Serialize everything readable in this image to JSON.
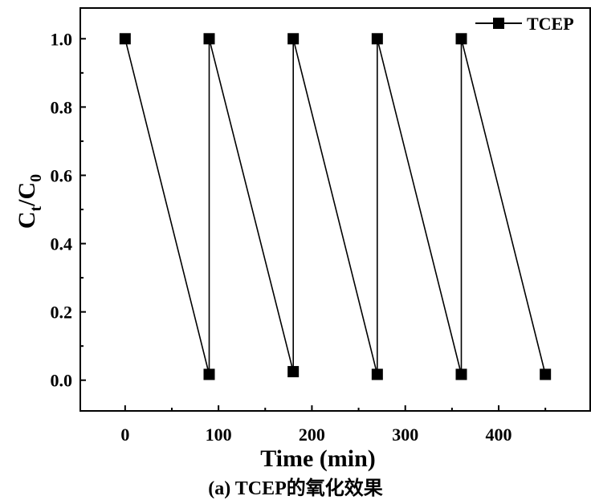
{
  "chart_data": {
    "type": "line",
    "series": [
      {
        "name": "TCEP",
        "points": [
          [
            0,
            1.0
          ],
          [
            90,
            0.017
          ],
          [
            90,
            1.0
          ],
          [
            180,
            0.025
          ],
          [
            180,
            1.0
          ],
          [
            270,
            0.017
          ],
          [
            270,
            1.0
          ],
          [
            360,
            0.017
          ],
          [
            360,
            1.0
          ],
          [
            450,
            0.017
          ]
        ]
      }
    ],
    "xlabel": "Time (min)",
    "ylabel_main": "C",
    "ylabel_sub1": "t",
    "ylabel_mid": "/C",
    "ylabel_sub2": "0",
    "xlim": [
      -48,
      498
    ],
    "ylim": [
      -0.09,
      1.09
    ],
    "xticks": [
      0,
      100,
      200,
      300,
      400
    ],
    "yticks": [
      0.0,
      0.2,
      0.4,
      0.6,
      0.8,
      1.0
    ],
    "xtick_labels": [
      "0",
      "100",
      "200",
      "300",
      "400"
    ],
    "ytick_labels": [
      "0.0",
      "0.2",
      "0.4",
      "0.6",
      "0.8",
      "1.0"
    ],
    "grid": false,
    "legend": "top-right",
    "marker": "square",
    "colors": {
      "line": "#000000",
      "marker": "#000000"
    }
  },
  "caption": "(a) TCEP的氧化效果"
}
